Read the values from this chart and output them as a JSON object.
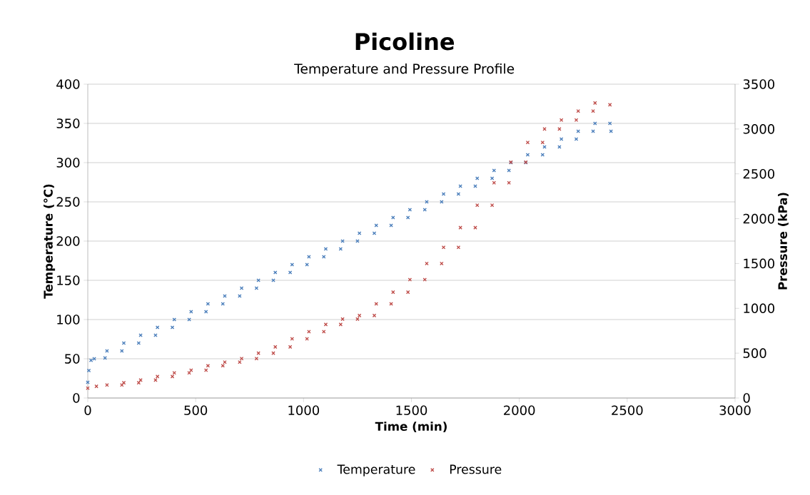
{
  "chart_data": {
    "type": "scatter",
    "title": "Picoline",
    "subtitle": "Temperature and Pressure Profile",
    "xlabel": "Time (min)",
    "ylabel": "Temperature (°C)",
    "y2label": "Pressure (kPa)",
    "xlim": [
      0,
      3000
    ],
    "xticks": [
      0,
      500,
      1000,
      1500,
      2000,
      2500,
      3000
    ],
    "ylim": [
      0,
      400
    ],
    "yticks": [
      0,
      50,
      100,
      150,
      200,
      250,
      300,
      350,
      400
    ],
    "y2lim": [
      0,
      3500
    ],
    "y2ticks": [
      0,
      500,
      1000,
      1500,
      2000,
      2500,
      3000,
      3500
    ],
    "grid": "y",
    "legend": "bottom",
    "marker": "cross",
    "series": [
      {
        "name": "Temperature",
        "color": "#4a7ebb",
        "x": [
          0,
          5,
          15,
          30,
          80,
          89,
          158,
          167,
          236,
          245,
          314,
          323,
          392,
          401,
          470,
          479,
          548,
          557,
          626,
          635,
          704,
          713,
          782,
          791,
          860,
          869,
          938,
          947,
          1016,
          1025,
          1094,
          1103,
          1172,
          1181,
          1250,
          1259,
          1328,
          1337,
          1406,
          1415,
          1484,
          1493,
          1562,
          1571,
          1640,
          1649,
          1718,
          1727,
          1796,
          1805,
          1874,
          1883,
          1952,
          1961,
          2030,
          2039,
          2108,
          2117,
          2186,
          2195,
          2264,
          2273,
          2342,
          2351,
          2420,
          2425
        ],
        "values": [
          20,
          35,
          48,
          50,
          51,
          60,
          60,
          70,
          70,
          80,
          80,
          90,
          90,
          100,
          100,
          110,
          110,
          120,
          120,
          130,
          130,
          140,
          140,
          150,
          150,
          160,
          160,
          170,
          170,
          180,
          180,
          190,
          190,
          200,
          200,
          210,
          210,
          220,
          220,
          230,
          230,
          240,
          240,
          250,
          250,
          260,
          260,
          270,
          270,
          280,
          280,
          290,
          290,
          300,
          300,
          310,
          310,
          320,
          320,
          330,
          330,
          340,
          340,
          350,
          350,
          340
        ]
      },
      {
        "name": "Pressure",
        "color": "#be4b48",
        "axis": "y2",
        "x": [
          0,
          40,
          89,
          158,
          167,
          236,
          245,
          314,
          323,
          392,
          401,
          470,
          479,
          548,
          557,
          626,
          635,
          704,
          713,
          782,
          791,
          860,
          869,
          938,
          947,
          1016,
          1025,
          1094,
          1103,
          1172,
          1181,
          1250,
          1259,
          1328,
          1337,
          1406,
          1415,
          1484,
          1493,
          1562,
          1571,
          1640,
          1649,
          1718,
          1727,
          1796,
          1805,
          1874,
          1883,
          1952,
          1961,
          2030,
          2039,
          2108,
          2117,
          2186,
          2195,
          2264,
          2273,
          2342,
          2351,
          2420
        ],
        "values": [
          110,
          130,
          145,
          145,
          170,
          170,
          200,
          200,
          240,
          240,
          280,
          280,
          310,
          310,
          360,
          360,
          400,
          400,
          440,
          440,
          500,
          500,
          570,
          570,
          660,
          660,
          740,
          740,
          820,
          820,
          880,
          880,
          920,
          920,
          1050,
          1050,
          1180,
          1180,
          1320,
          1320,
          1500,
          1500,
          1680,
          1680,
          1900,
          1900,
          2150,
          2150,
          2400,
          2400,
          2630,
          2630,
          2850,
          2850,
          3000,
          3000,
          3100,
          3100,
          3200,
          3200,
          3290,
          3270
        ]
      }
    ]
  }
}
